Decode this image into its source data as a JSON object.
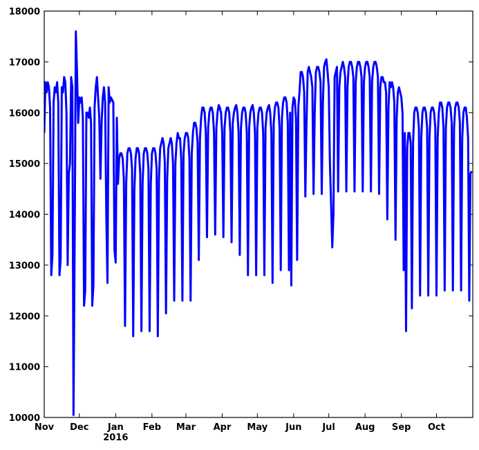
{
  "chart_data": {
    "type": "line",
    "x": [
      "2015-11-01",
      "2015-11-02",
      "2015-11-03",
      "2015-11-04",
      "2015-11-05",
      "2015-11-06",
      "2015-11-07",
      "2015-11-08",
      "2015-11-09",
      "2015-11-10",
      "2015-11-11",
      "2015-11-12",
      "2015-11-13",
      "2015-11-14",
      "2015-11-15",
      "2015-11-16",
      "2015-11-17",
      "2015-11-18",
      "2015-11-19",
      "2015-11-20",
      "2015-11-21",
      "2015-11-22",
      "2015-11-23",
      "2015-11-24",
      "2015-11-25",
      "2015-11-26",
      "2015-11-27",
      "2015-11-28",
      "2015-11-29",
      "2015-11-30",
      "2015-12-01",
      "2015-12-02",
      "2015-12-03",
      "2015-12-04",
      "2015-12-05",
      "2015-12-06",
      "2015-12-07",
      "2015-12-08",
      "2015-12-09",
      "2015-12-10",
      "2015-12-11",
      "2015-12-12",
      "2015-12-13",
      "2015-12-14",
      "2015-12-15",
      "2015-12-16",
      "2015-12-17",
      "2015-12-18",
      "2015-12-19",
      "2015-12-20",
      "2015-12-21",
      "2015-12-22",
      "2015-12-23",
      "2015-12-24",
      "2015-12-25",
      "2015-12-26",
      "2015-12-27",
      "2015-12-28",
      "2015-12-29",
      "2015-12-30",
      "2015-12-31",
      "2016-01-01",
      "2016-01-02",
      "2016-01-03",
      "2016-01-04",
      "2016-01-05",
      "2016-01-06",
      "2016-01-07",
      "2016-01-08",
      "2016-01-09",
      "2016-01-10",
      "2016-01-11",
      "2016-01-12",
      "2016-01-13",
      "2016-01-14",
      "2016-01-15",
      "2016-01-16",
      "2016-01-17",
      "2016-01-18",
      "2016-01-19",
      "2016-01-20",
      "2016-01-21",
      "2016-01-22",
      "2016-01-23",
      "2016-01-24",
      "2016-01-25",
      "2016-01-26",
      "2016-01-27",
      "2016-01-28",
      "2016-01-29",
      "2016-01-30",
      "2016-01-31",
      "2016-02-01",
      "2016-02-02",
      "2016-02-03",
      "2016-02-04",
      "2016-02-05",
      "2016-02-06",
      "2016-02-07",
      "2016-02-08",
      "2016-02-09",
      "2016-02-10",
      "2016-02-11",
      "2016-02-12",
      "2016-02-13",
      "2016-02-14",
      "2016-02-15",
      "2016-02-16",
      "2016-02-17",
      "2016-02-18",
      "2016-02-19",
      "2016-02-20",
      "2016-02-21",
      "2016-02-22",
      "2016-02-23",
      "2016-02-24",
      "2016-02-25",
      "2016-02-26",
      "2016-02-27",
      "2016-02-28",
      "2016-02-29",
      "2016-03-01",
      "2016-03-02",
      "2016-03-03",
      "2016-03-04",
      "2016-03-05",
      "2016-03-06",
      "2016-03-07",
      "2016-03-08",
      "2016-03-09",
      "2016-03-10",
      "2016-03-11",
      "2016-03-12",
      "2016-03-13",
      "2016-03-14",
      "2016-03-15",
      "2016-03-16",
      "2016-03-17",
      "2016-03-18",
      "2016-03-19",
      "2016-03-20",
      "2016-03-21",
      "2016-03-22",
      "2016-03-23",
      "2016-03-24",
      "2016-03-25",
      "2016-03-26",
      "2016-03-27",
      "2016-03-28",
      "2016-03-29",
      "2016-03-30",
      "2016-03-31",
      "2016-04-01",
      "2016-04-02",
      "2016-04-03",
      "2016-04-04",
      "2016-04-05",
      "2016-04-06",
      "2016-04-07",
      "2016-04-08",
      "2016-04-09",
      "2016-04-10",
      "2016-04-11",
      "2016-04-12",
      "2016-04-13",
      "2016-04-14",
      "2016-04-15",
      "2016-04-16",
      "2016-04-17",
      "2016-04-18",
      "2016-04-19",
      "2016-04-20",
      "2016-04-21",
      "2016-04-22",
      "2016-04-23",
      "2016-04-24",
      "2016-04-25",
      "2016-04-26",
      "2016-04-27",
      "2016-04-28",
      "2016-04-29",
      "2016-04-30",
      "2016-05-01",
      "2016-05-02",
      "2016-05-03",
      "2016-05-04",
      "2016-05-05",
      "2016-05-06",
      "2016-05-07",
      "2016-05-08",
      "2016-05-09",
      "2016-05-10",
      "2016-05-11",
      "2016-05-12",
      "2016-05-13",
      "2016-05-14",
      "2016-05-15",
      "2016-05-16",
      "2016-05-17",
      "2016-05-18",
      "2016-05-19",
      "2016-05-20",
      "2016-05-21",
      "2016-05-22",
      "2016-05-23",
      "2016-05-24",
      "2016-05-25",
      "2016-05-26",
      "2016-05-27",
      "2016-05-28",
      "2016-05-29",
      "2016-05-30",
      "2016-05-31",
      "2016-06-01",
      "2016-06-02",
      "2016-06-03",
      "2016-06-04",
      "2016-06-05",
      "2016-06-06",
      "2016-06-07",
      "2016-06-08",
      "2016-06-09",
      "2016-06-10",
      "2016-06-11",
      "2016-06-12",
      "2016-06-13",
      "2016-06-14",
      "2016-06-15",
      "2016-06-16",
      "2016-06-17",
      "2016-06-18",
      "2016-06-19",
      "2016-06-20",
      "2016-06-21",
      "2016-06-22",
      "2016-06-23",
      "2016-06-24",
      "2016-06-25",
      "2016-06-26",
      "2016-06-27",
      "2016-06-28",
      "2016-06-29",
      "2016-06-30",
      "2016-07-01",
      "2016-07-02",
      "2016-07-03",
      "2016-07-04",
      "2016-07-05",
      "2016-07-06",
      "2016-07-07",
      "2016-07-08",
      "2016-07-09",
      "2016-07-10",
      "2016-07-11",
      "2016-07-12",
      "2016-07-13",
      "2016-07-14",
      "2016-07-15",
      "2016-07-16",
      "2016-07-17",
      "2016-07-18",
      "2016-07-19",
      "2016-07-20",
      "2016-07-21",
      "2016-07-22",
      "2016-07-23",
      "2016-07-24",
      "2016-07-25",
      "2016-07-26",
      "2016-07-27",
      "2016-07-28",
      "2016-07-29",
      "2016-07-30",
      "2016-07-31",
      "2016-08-01",
      "2016-08-02",
      "2016-08-03",
      "2016-08-04",
      "2016-08-05",
      "2016-08-06",
      "2016-08-07",
      "2016-08-08",
      "2016-08-09",
      "2016-08-10",
      "2016-08-11",
      "2016-08-12",
      "2016-08-13",
      "2016-08-14",
      "2016-08-15",
      "2016-08-16",
      "2016-08-17",
      "2016-08-18",
      "2016-08-19",
      "2016-08-20",
      "2016-08-21",
      "2016-08-22",
      "2016-08-23",
      "2016-08-24",
      "2016-08-25",
      "2016-08-26",
      "2016-08-27",
      "2016-08-28",
      "2016-08-29",
      "2016-08-30",
      "2016-08-31",
      "2016-09-01",
      "2016-09-02",
      "2016-09-03",
      "2016-09-04",
      "2016-09-05",
      "2016-09-06",
      "2016-09-07",
      "2016-09-08",
      "2016-09-09",
      "2016-09-10",
      "2016-09-11",
      "2016-09-12",
      "2016-09-13",
      "2016-09-14",
      "2016-09-15",
      "2016-09-16",
      "2016-09-17",
      "2016-09-18",
      "2016-09-19",
      "2016-09-20",
      "2016-09-21",
      "2016-09-22",
      "2016-09-23",
      "2016-09-24",
      "2016-09-25",
      "2016-09-26",
      "2016-09-27",
      "2016-09-28",
      "2016-09-29",
      "2016-09-30",
      "2016-10-01",
      "2016-10-02",
      "2016-10-03",
      "2016-10-04",
      "2016-10-05",
      "2016-10-06",
      "2016-10-07",
      "2016-10-08",
      "2016-10-09",
      "2016-10-10",
      "2016-10-11",
      "2016-10-12",
      "2016-10-13",
      "2016-10-14",
      "2016-10-15",
      "2016-10-16",
      "2016-10-17",
      "2016-10-18",
      "2016-10-19",
      "2016-10-20",
      "2016-10-21",
      "2016-10-22",
      "2016-10-23",
      "2016-10-24",
      "2016-10-25",
      "2016-10-26",
      "2016-10-27",
      "2016-10-28",
      "2016-10-29",
      "2016-10-30",
      "2016-10-31"
    ],
    "values": [
      15600,
      16600,
      16400,
      16600,
      16500,
      16100,
      12800,
      13200,
      16200,
      16500,
      16400,
      16600,
      16200,
      12800,
      13100,
      16500,
      16400,
      16700,
      16600,
      16000,
      13000,
      14800,
      15000,
      16700,
      16500,
      10050,
      13500,
      17600,
      16800,
      15800,
      16300,
      16200,
      16300,
      15900,
      12200,
      12500,
      16000,
      16000,
      15900,
      16100,
      15800,
      12200,
      12600,
      16100,
      16500,
      16700,
      16300,
      15900,
      14700,
      15800,
      16300,
      16500,
      16200,
      14000,
      12650,
      16500,
      16200,
      16300,
      16250,
      16200,
      13300,
      13050,
      15900,
      14600,
      15100,
      15200,
      15200,
      15100,
      14700,
      11800,
      14600,
      15200,
      15300,
      15300,
      15200,
      14900,
      11600,
      14500,
      15100,
      15300,
      15300,
      15200,
      14800,
      11700,
      14600,
      15200,
      15300,
      15300,
      15200,
      14900,
      11700,
      14600,
      15200,
      15300,
      15300,
      15200,
      14900,
      11600,
      14700,
      15300,
      15400,
      15500,
      15400,
      15000,
      12050,
      14700,
      15300,
      15400,
      15500,
      15400,
      15000,
      12300,
      15000,
      15400,
      15600,
      15500,
      15500,
      15100,
      12300,
      15200,
      15500,
      15600,
      15600,
      15500,
      15100,
      12300,
      15200,
      15600,
      15800,
      15800,
      15700,
      15400,
      13100,
      15500,
      15900,
      16100,
      16100,
      16000,
      15600,
      13550,
      15700,
      16000,
      16100,
      16100,
      16000,
      15600,
      13600,
      15700,
      16000,
      16150,
      16100,
      16000,
      15600,
      13550,
      15700,
      16000,
      16100,
      16100,
      16000,
      15600,
      13450,
      15800,
      16000,
      16100,
      16150,
      16000,
      15600,
      13200,
      15700,
      16000,
      16100,
      16100,
      16000,
      15600,
      12800,
      15700,
      16000,
      16100,
      16150,
      16000,
      15600,
      12800,
      15700,
      16000,
      16100,
      16100,
      16000,
      15600,
      12800,
      15700,
      16000,
      16100,
      16150,
      16000,
      15600,
      12650,
      15800,
      16100,
      16200,
      16200,
      16100,
      15700,
      12900,
      15900,
      16200,
      16300,
      16300,
      16200,
      15800,
      12900,
      16000,
      12600,
      16100,
      16300,
      16250,
      15900,
      13100,
      16100,
      16400,
      16800,
      16800,
      16700,
      16400,
      14350,
      15800,
      16800,
      16900,
      16800,
      16700,
      16500,
      14400,
      16000,
      16800,
      16900,
      16900,
      16800,
      16600,
      14400,
      16200,
      16900,
      17000,
      17050,
      16800,
      16500,
      15000,
      14200,
      13350,
      14000,
      16700,
      16800,
      16900,
      14450,
      16500,
      16800,
      16900,
      17000,
      16900,
      16700,
      14450,
      16500,
      16900,
      17000,
      17000,
      16900,
      16700,
      14450,
      16600,
      16900,
      17000,
      17000,
      16900,
      16700,
      14450,
      16600,
      16900,
      17000,
      17000,
      16900,
      16700,
      14450,
      16600,
      16900,
      17000,
      17000,
      16900,
      16700,
      14400,
      16500,
      16700,
      16700,
      16600,
      16600,
      16400,
      13900,
      16100,
      16600,
      16500,
      16600,
      16500,
      16200,
      13500,
      15900,
      16400,
      16500,
      16400,
      16300,
      16000,
      12900,
      15600,
      11700,
      15300,
      15600,
      15600,
      15400,
      12150,
      15400,
      16000,
      16100,
      16100,
      16000,
      15700,
      12400,
      15500,
      16000,
      16100,
      16100,
      16000,
      15700,
      12400,
      15500,
      16000,
      16100,
      16100,
      16000,
      15700,
      12400,
      15500,
      16000,
      16200,
      16200,
      16100,
      15700,
      12500,
      15700,
      16100,
      16200,
      16200,
      16100,
      15800,
      12500,
      15700,
      16100,
      16200,
      16200,
      16100,
      15800,
      12500,
      15500,
      16000,
      16100,
      16100,
      15900,
      15500,
      12300,
      14800,
      14850
    ],
    "color": "#0000ff",
    "xlim": [
      "2015-11-01",
      "2016-11-01"
    ],
    "xticks": [
      {
        "value": "2015-11-01",
        "label": "Nov"
      },
      {
        "value": "2015-12-01",
        "label": "Dec"
      },
      {
        "value": "2016-01-01",
        "label": "Jan\n2016"
      },
      {
        "value": "2016-02-01",
        "label": "Feb"
      },
      {
        "value": "2016-03-01",
        "label": "Mar"
      },
      {
        "value": "2016-04-01",
        "label": "Apr"
      },
      {
        "value": "2016-05-01",
        "label": "May"
      },
      {
        "value": "2016-06-01",
        "label": "Jun"
      },
      {
        "value": "2016-07-01",
        "label": "Jul"
      },
      {
        "value": "2016-08-01",
        "label": "Aug"
      },
      {
        "value": "2016-09-01",
        "label": "Sep"
      },
      {
        "value": "2016-10-01",
        "label": "Oct"
      }
    ],
    "ylim": [
      10000,
      18000
    ],
    "yticks": [
      10000,
      11000,
      12000,
      13000,
      14000,
      15000,
      16000,
      17000,
      18000
    ],
    "grid": false
  }
}
